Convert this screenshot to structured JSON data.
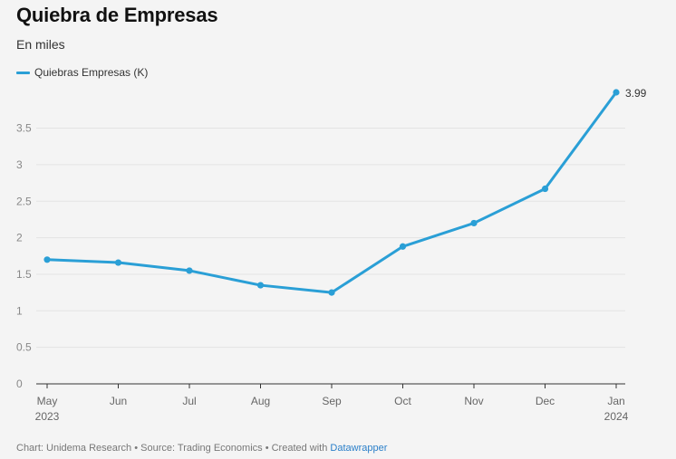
{
  "title": "Quiebra de Empresas",
  "subtitle": "En miles",
  "legend": {
    "label": "Quiebras Empresas (K)"
  },
  "footer": {
    "credit": "Chart: Unidema Research • Source: Trading Economics • Created with ",
    "link": "Datawrapper"
  },
  "colors": {
    "line": "#2a9fd6",
    "grid": "#e3e3e3",
    "axis": "#333333"
  },
  "chart_data": {
    "type": "line",
    "title": "Quiebra de Empresas",
    "subtitle": "En miles",
    "x": [
      "May 2023",
      "Jun",
      "Jul",
      "Aug",
      "Sep",
      "Oct",
      "Nov",
      "Dec",
      "Jan 2024"
    ],
    "x_tick_labels": [
      [
        "May",
        "2023"
      ],
      [
        "Jun"
      ],
      [
        "Jul"
      ],
      [
        "Aug"
      ],
      [
        "Sep"
      ],
      [
        "Oct"
      ],
      [
        "Nov"
      ],
      [
        "Dec"
      ],
      [
        "Jan",
        "2024"
      ]
    ],
    "series": [
      {
        "name": "Quiebras Empresas (K)",
        "values": [
          1.7,
          1.66,
          1.55,
          1.35,
          1.25,
          1.88,
          2.2,
          2.67,
          3.99
        ]
      }
    ],
    "y_ticks": [
      "0",
      "0.5",
      "1",
      "1.5",
      "2",
      "2.5",
      "3",
      "3.5"
    ],
    "ylim": [
      0,
      3.99
    ],
    "end_label": "3.99",
    "grid": true,
    "legend_position": "top-left"
  }
}
